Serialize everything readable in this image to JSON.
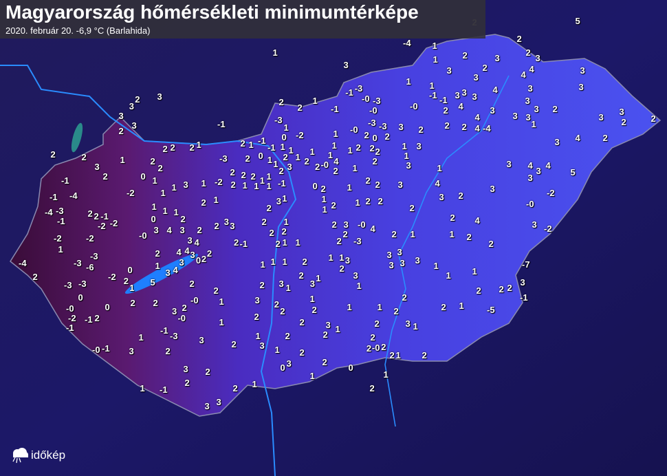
{
  "header": {
    "title": "Magyarország hőmérsékleti minimumtérképe",
    "subtitle": "2020. február 20.  -6,9 °C (Barlahida)"
  },
  "logo": {
    "text": "időkép",
    "icon": "cloud-sun-icon"
  },
  "colors": {
    "background": "#1a1456",
    "country_east": "#4a44e8",
    "country_west": "#4a1040",
    "lake": "#1e7fff",
    "river": "#2a8cff",
    "text": "#ffffff"
  },
  "stations": [
    "-4",
    "1",
    "5",
    "2",
    "2",
    "2",
    "3",
    "1",
    "3",
    "1",
    "2",
    "3",
    "2",
    "4",
    "3",
    "4",
    "3",
    "3",
    "1",
    "1",
    "4",
    "3",
    "3",
    "2",
    "3",
    "3",
    "-1",
    "-3",
    "-0",
    "-3",
    "-0",
    "2",
    "2",
    "1",
    "-1",
    "-0",
    "-1",
    "-1",
    "3",
    "3",
    "2",
    "4",
    "3",
    "3",
    "3",
    "3",
    "2",
    "3",
    "3",
    "2",
    "-1",
    "-3",
    "1",
    "-2",
    "0",
    "1",
    "-0",
    "-3",
    "-3",
    "2",
    "0",
    "2",
    "3",
    "2",
    "2",
    "2",
    "4",
    "4",
    "-4",
    "3",
    "3",
    "1",
    "3",
    "3",
    "2",
    "2",
    "2",
    "4",
    "3",
    "2",
    "2",
    "1",
    "2",
    "2",
    "2",
    "2",
    "1",
    "2",
    "1",
    "-1",
    "-1",
    "1",
    "1",
    "1",
    "1",
    "1",
    "1",
    "2",
    "2",
    "2",
    "2",
    "1",
    "3",
    "1",
    "3",
    "-3",
    "2",
    "0",
    "1",
    "2",
    "1",
    "3",
    "2",
    "2",
    "-0",
    "1",
    "2",
    "1",
    "4",
    "3",
    "4",
    "3",
    "4",
    "3",
    "5",
    "1",
    "3",
    "2",
    "2",
    "0",
    "1",
    "-1",
    "-2",
    "1",
    "1",
    "3",
    "1",
    "-2",
    "2",
    "2",
    "2",
    "1",
    "1",
    "-1",
    "2",
    "1",
    "1",
    "1",
    "2",
    "0",
    "2",
    "1",
    "2",
    "2",
    "3",
    "4",
    "3",
    "-2",
    "-1",
    "-4",
    "-4",
    "-3",
    "-1",
    "2",
    "2",
    "-1",
    "-2",
    "-2",
    "1",
    "0",
    "1",
    "1",
    "2",
    "2",
    "1",
    "2",
    "3",
    "1",
    "1",
    "1",
    "2",
    "1",
    "2",
    "2",
    "2",
    "3",
    "2",
    "-0",
    "-0",
    "3",
    "4",
    "3",
    "2",
    "2",
    "3",
    "3",
    "2",
    "1",
    "2",
    "3",
    "-0",
    "4",
    "2",
    "2",
    "4",
    "3",
    "-2",
    "-2",
    "-2",
    "1",
    "2",
    "2",
    "2",
    "1",
    "1",
    "2",
    "2",
    "3",
    "4",
    "4",
    "4",
    "3",
    "2",
    "2",
    "2",
    "-1",
    "2",
    "1",
    "1",
    "2",
    "-3",
    "-3",
    "-3",
    "-6",
    "-4",
    "2",
    "2",
    "1",
    "0",
    "-2",
    "2",
    "1",
    "5",
    "3",
    "4",
    "3",
    "0",
    "1",
    "1",
    "1",
    "2",
    "1",
    "1",
    "3",
    "3",
    "3",
    "3",
    "3",
    "3",
    "1",
    "-7",
    "-3",
    "-3",
    "0",
    "2",
    "2",
    "2",
    "3",
    "1",
    "2",
    "1",
    "3",
    "2",
    "3",
    "1",
    "1",
    "1",
    "2",
    "2",
    "2",
    "3",
    "-1",
    "0",
    "2",
    "2",
    "3",
    "2",
    "-0",
    "1",
    "3",
    "2",
    "2",
    "1",
    "2",
    "1",
    "1",
    "2",
    "2",
    "2",
    "1",
    "-5",
    "-0",
    "-2",
    "-1",
    "-1",
    "2",
    "-0",
    "1",
    "2",
    "2",
    "3",
    "1",
    "2",
    "3",
    "1",
    "-1",
    "-3",
    "1",
    "3",
    "1",
    "2",
    "2",
    "2",
    "-0",
    "-0",
    "-1",
    "3",
    "2",
    "2",
    "3",
    "1",
    "2",
    "2",
    "2",
    "2",
    "1",
    "2",
    "2",
    "3",
    "0",
    "0",
    "3",
    "2",
    "1",
    "1",
    "-1",
    "1",
    "2",
    "2",
    "1",
    "2",
    "3",
    "3"
  ]
}
